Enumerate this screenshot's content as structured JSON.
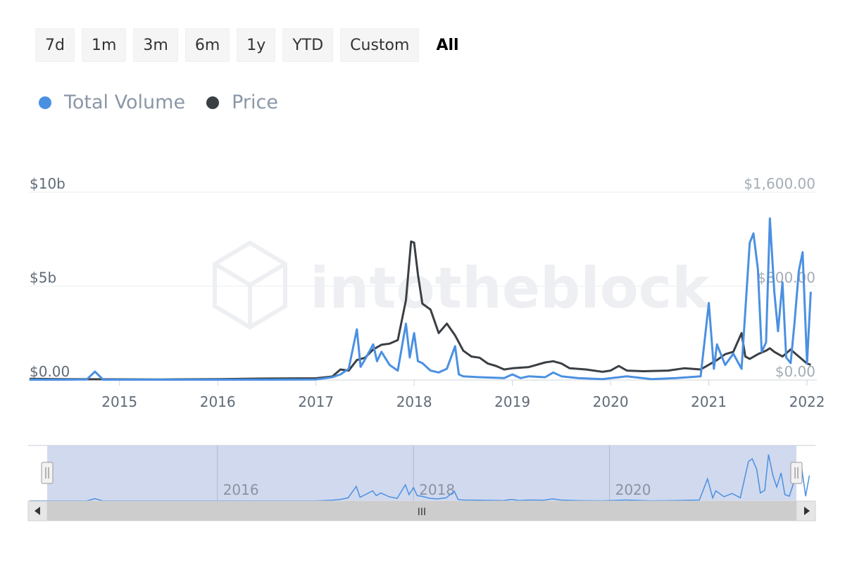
{
  "toolbar": {
    "ranges": [
      "7d",
      "1m",
      "3m",
      "6m",
      "1y",
      "YTD",
      "Custom",
      "All"
    ],
    "active": "All"
  },
  "legend": [
    {
      "name": "Total Volume",
      "color": "#4a90e2"
    },
    {
      "name": "Price",
      "color": "#3a3f44"
    }
  ],
  "watermark": "intotheblock",
  "chart_data": {
    "type": "line",
    "x_tick_labels": [
      "2015",
      "2016",
      "2017",
      "2018",
      "2019",
      "2020",
      "2021",
      "2022"
    ],
    "y_left": {
      "ticks": [
        "$0.00",
        "$5b",
        "$10b"
      ],
      "range": [
        0,
        10000000000
      ]
    },
    "y_right": {
      "ticks": [
        "$0.00",
        "$800.00",
        "$1,600.00"
      ],
      "range": [
        0,
        1600
      ]
    },
    "grid": true,
    "legend_position": "top-left",
    "series": [
      {
        "name": "Total Volume",
        "axis": "left",
        "color": "#4a90e2",
        "points": [
          [
            "2014-02",
            0.02
          ],
          [
            "2014-06",
            0.02
          ],
          [
            "2014-09",
            0.03
          ],
          [
            "2014-10",
            0.45
          ],
          [
            "2014-11",
            0.02
          ],
          [
            "2015-06",
            0.02
          ],
          [
            "2016-01",
            0.02
          ],
          [
            "2016-06",
            0.02
          ],
          [
            "2017-01",
            0.03
          ],
          [
            "2017-03",
            0.15
          ],
          [
            "2017-04",
            0.3
          ],
          [
            "2017-05",
            0.6
          ],
          [
            "2017-06",
            2.7
          ],
          [
            "2017-06-15",
            0.7
          ],
          [
            "2017-07",
            1.1
          ],
          [
            "2017-08",
            1.9
          ],
          [
            "2017-08-15",
            1.0
          ],
          [
            "2017-09",
            1.5
          ],
          [
            "2017-10",
            0.8
          ],
          [
            "2017-11",
            0.5
          ],
          [
            "2017-12",
            3.0
          ],
          [
            "2017-12-15",
            1.2
          ],
          [
            "2018-01",
            2.5
          ],
          [
            "2018-01-15",
            1.0
          ],
          [
            "2018-02",
            0.9
          ],
          [
            "2018-03",
            0.5
          ],
          [
            "2018-04",
            0.4
          ],
          [
            "2018-05",
            0.6
          ],
          [
            "2018-06",
            1.8
          ],
          [
            "2018-06-15",
            0.3
          ],
          [
            "2018-07",
            0.2
          ],
          [
            "2018-09",
            0.15
          ],
          [
            "2018-12",
            0.1
          ],
          [
            "2019-01",
            0.3
          ],
          [
            "2019-02",
            0.1
          ],
          [
            "2019-03",
            0.2
          ],
          [
            "2019-05",
            0.15
          ],
          [
            "2019-06",
            0.4
          ],
          [
            "2019-07",
            0.2
          ],
          [
            "2019-09",
            0.1
          ],
          [
            "2019-12",
            0.05
          ],
          [
            "2020-03",
            0.2
          ],
          [
            "2020-06",
            0.05
          ],
          [
            "2020-09",
            0.1
          ],
          [
            "2020-12",
            0.2
          ],
          [
            "2021-01",
            4.1
          ],
          [
            "2021-01-20",
            0.6
          ],
          [
            "2021-02",
            1.9
          ],
          [
            "2021-03",
            0.8
          ],
          [
            "2021-04",
            1.4
          ],
          [
            "2021-05",
            0.6
          ],
          [
            "2021-06",
            7.3
          ],
          [
            "2021-06-15",
            7.8
          ],
          [
            "2021-07",
            5.9
          ],
          [
            "2021-07-15",
            1.5
          ],
          [
            "2021-08",
            2.0
          ],
          [
            "2021-08-15",
            8.6
          ],
          [
            "2021-09",
            4.7
          ],
          [
            "2021-09-15",
            2.6
          ],
          [
            "2021-10",
            5.2
          ],
          [
            "2021-10-15",
            1.2
          ],
          [
            "2021-11",
            0.9
          ],
          [
            "2021-11-15",
            3.0
          ],
          [
            "2021-12",
            5.8
          ],
          [
            "2021-12-15",
            6.8
          ],
          [
            "2022-01",
            0.9
          ],
          [
            "2022-01-15",
            4.7
          ]
        ]
      },
      {
        "name": "Price",
        "axis": "right",
        "color": "#3a3f44",
        "points": [
          [
            "2014-02",
            10
          ],
          [
            "2014-06",
            8
          ],
          [
            "2015-01",
            6
          ],
          [
            "2015-06",
            5
          ],
          [
            "2016-01",
            8
          ],
          [
            "2016-06",
            12
          ],
          [
            "2017-01",
            15
          ],
          [
            "2017-03",
            30
          ],
          [
            "2017-04",
            90
          ],
          [
            "2017-05",
            80
          ],
          [
            "2017-06",
            170
          ],
          [
            "2017-07",
            190
          ],
          [
            "2017-08",
            260
          ],
          [
            "2017-09",
            300
          ],
          [
            "2017-10",
            310
          ],
          [
            "2017-11",
            340
          ],
          [
            "2017-12",
            680
          ],
          [
            "2017-12-20",
            1180
          ],
          [
            "2018-01",
            1170
          ],
          [
            "2018-01-15",
            900
          ],
          [
            "2018-02",
            650
          ],
          [
            "2018-03",
            600
          ],
          [
            "2018-04",
            400
          ],
          [
            "2018-05",
            480
          ],
          [
            "2018-06",
            380
          ],
          [
            "2018-07",
            250
          ],
          [
            "2018-08",
            200
          ],
          [
            "2018-09",
            190
          ],
          [
            "2018-10",
            140
          ],
          [
            "2018-11",
            120
          ],
          [
            "2018-12",
            90
          ],
          [
            "2019-01",
            100
          ],
          [
            "2019-03",
            110
          ],
          [
            "2019-05",
            150
          ],
          [
            "2019-06",
            160
          ],
          [
            "2019-07",
            140
          ],
          [
            "2019-08",
            100
          ],
          [
            "2019-10",
            90
          ],
          [
            "2019-12",
            70
          ],
          [
            "2020-01",
            80
          ],
          [
            "2020-02",
            120
          ],
          [
            "2020-03",
            80
          ],
          [
            "2020-05",
            75
          ],
          [
            "2020-08",
            80
          ],
          [
            "2020-10",
            100
          ],
          [
            "2020-12",
            90
          ],
          [
            "2021-01",
            130
          ],
          [
            "2021-02",
            170
          ],
          [
            "2021-03",
            220
          ],
          [
            "2021-04",
            240
          ],
          [
            "2021-05",
            400
          ],
          [
            "2021-05-15",
            200
          ],
          [
            "2021-06",
            180
          ],
          [
            "2021-07",
            220
          ],
          [
            "2021-08",
            250
          ],
          [
            "2021-08-15",
            270
          ],
          [
            "2021-09",
            240
          ],
          [
            "2021-10",
            200
          ],
          [
            "2021-11",
            260
          ],
          [
            "2021-12",
            200
          ],
          [
            "2022-01",
            140
          ],
          [
            "2022-01-15",
            130
          ]
        ]
      }
    ]
  },
  "navigator": {
    "x_tick_labels": [
      "2016",
      "2018",
      "2020"
    ],
    "scroll_grip": "III"
  }
}
